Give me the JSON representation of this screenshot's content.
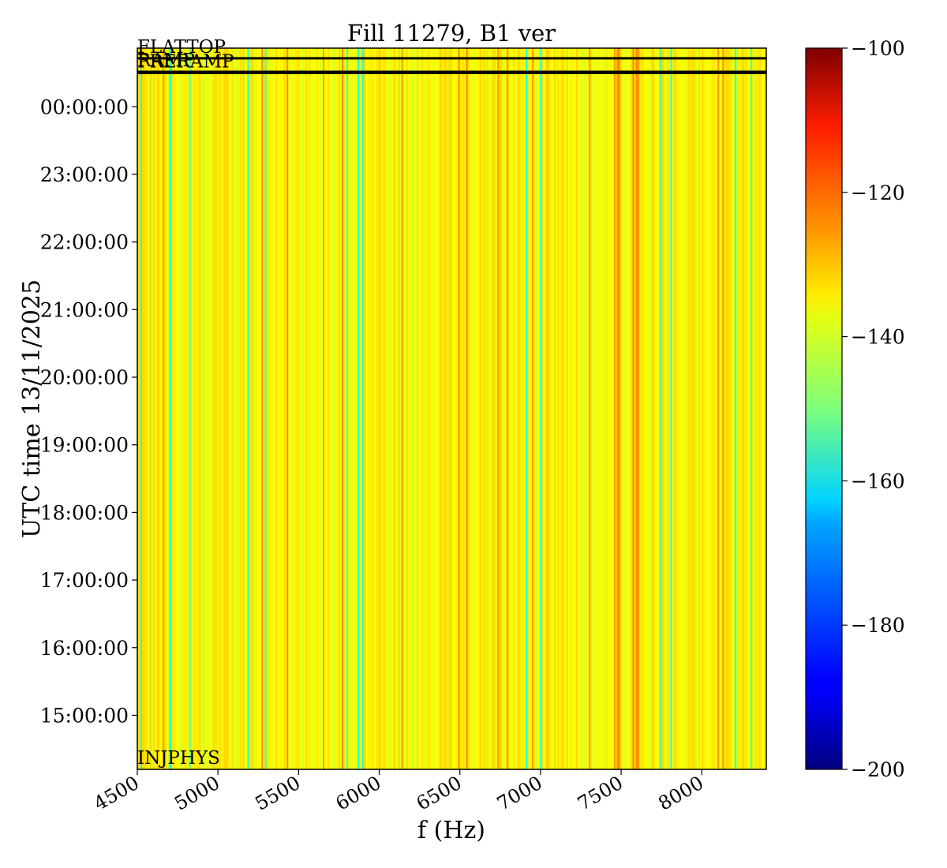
{
  "chart_data": {
    "type": "heatmap",
    "title": "Fill 11279, B1 ver",
    "xlabel": "f (Hz)",
    "ylabel": "UTC time 13/11/2025",
    "xlim": [
      4500,
      8400
    ],
    "ylim": [
      "14:12:00",
      "00:52:00"
    ],
    "x_ticks": [
      "4500",
      "5000",
      "5500",
      "6000",
      "6500",
      "7000",
      "7500",
      "8000"
    ],
    "y_ticks": [
      "15:00:00",
      "16:00:00",
      "17:00:00",
      "18:00:00",
      "19:00:00",
      "20:00:00",
      "21:00:00",
      "22:00:00",
      "23:00:00",
      "00:00:00"
    ],
    "colorbar": {
      "colormap": "jet",
      "range": [
        -200,
        -100
      ],
      "ticks": [
        "−100",
        "−120",
        "−140",
        "−160",
        "−180",
        "−200"
      ]
    },
    "beam_modes": [
      {
        "label": "INJPHYS",
        "time": "14:12:00"
      },
      {
        "label": "PRERAMP",
        "time": "00:30:00"
      },
      {
        "label": "RAMP",
        "time": "00:31:00"
      },
      {
        "label": "FLATTOP",
        "time": "00:43:00"
      }
    ],
    "value_range_observed": [
      -160,
      -125
    ],
    "typical_value": -137
  }
}
